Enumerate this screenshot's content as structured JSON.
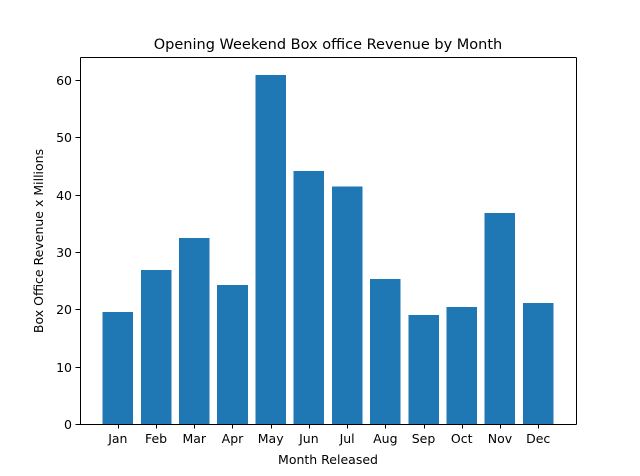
{
  "chart_data": {
    "type": "bar",
    "title": "Opening Weekend Box office Revenue by Month",
    "xlabel": "Month Released",
    "ylabel": "Box Office Revenue x Millions",
    "categories": [
      "Jan",
      "Feb",
      "Mar",
      "Apr",
      "May",
      "Jun",
      "Jul",
      "Aug",
      "Sep",
      "Oct",
      "Nov",
      "Dec"
    ],
    "values": [
      19.5,
      26.9,
      32.4,
      24.2,
      60.9,
      44.1,
      41.4,
      25.3,
      19.0,
      20.4,
      36.8,
      21.1
    ],
    "ylim": [
      0,
      64.0
    ],
    "yticks": [
      0,
      10,
      20,
      30,
      40,
      50,
      60
    ],
    "bar_color": "#1f77b4",
    "grid": false,
    "legend": "none"
  }
}
